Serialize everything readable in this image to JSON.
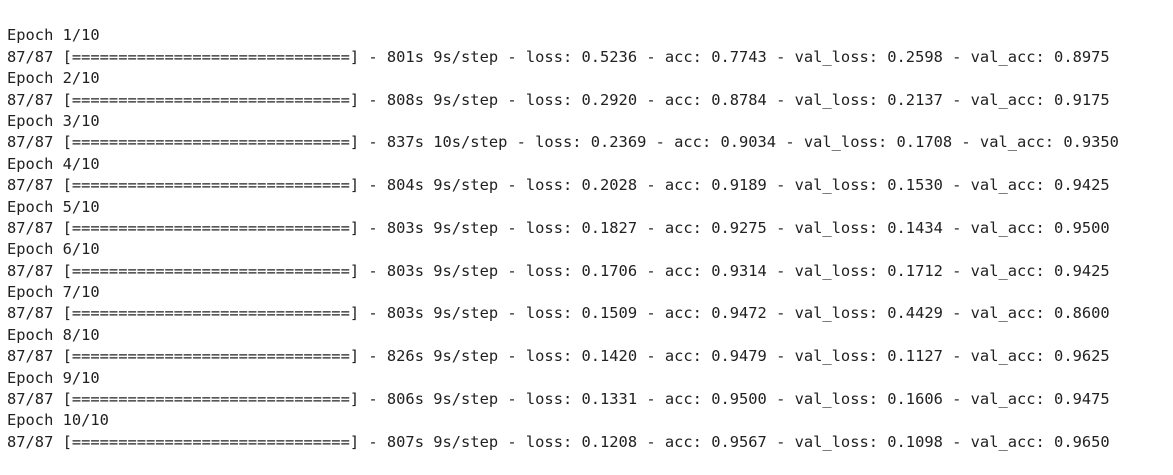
{
  "output": {
    "epochs": [
      {
        "header": "Epoch 1/10",
        "progress": "87/87 [==============================] - 801s 9s/step - loss: 0.5236 - acc: 0.7743 - val_loss: 0.2598 - val_acc: 0.8975"
      },
      {
        "header": "Epoch 2/10",
        "progress": "87/87 [==============================] - 808s 9s/step - loss: 0.2920 - acc: 0.8784 - val_loss: 0.2137 - val_acc: 0.9175"
      },
      {
        "header": "Epoch 3/10",
        "progress": "87/87 [==============================] - 837s 10s/step - loss: 0.2369 - acc: 0.9034 - val_loss: 0.1708 - val_acc: 0.9350"
      },
      {
        "header": "Epoch 4/10",
        "progress": "87/87 [==============================] - 804s 9s/step - loss: 0.2028 - acc: 0.9189 - val_loss: 0.1530 - val_acc: 0.9425"
      },
      {
        "header": "Epoch 5/10",
        "progress": "87/87 [==============================] - 803s 9s/step - loss: 0.1827 - acc: 0.9275 - val_loss: 0.1434 - val_acc: 0.9500"
      },
      {
        "header": "Epoch 6/10",
        "progress": "87/87 [==============================] - 803s 9s/step - loss: 0.1706 - acc: 0.9314 - val_loss: 0.1712 - val_acc: 0.9425"
      },
      {
        "header": "Epoch 7/10",
        "progress": "87/87 [==============================] - 803s 9s/step - loss: 0.1509 - acc: 0.9472 - val_loss: 0.4429 - val_acc: 0.8600"
      },
      {
        "header": "Epoch 8/10",
        "progress": "87/87 [==============================] - 826s 9s/step - loss: 0.1420 - acc: 0.9479 - val_loss: 0.1127 - val_acc: 0.9625"
      },
      {
        "header": "Epoch 9/10",
        "progress": "87/87 [==============================] - 806s 9s/step - loss: 0.1331 - acc: 0.9500 - val_loss: 0.1606 - val_acc: 0.9475"
      },
      {
        "header": "Epoch 10/10",
        "progress": "87/87 [==============================] - 807s 9s/step - loss: 0.1208 - acc: 0.9567 - val_loss: 0.1098 - val_acc: 0.9650"
      }
    ]
  },
  "colors": {
    "background": "#ffffff",
    "text": "#212121"
  }
}
